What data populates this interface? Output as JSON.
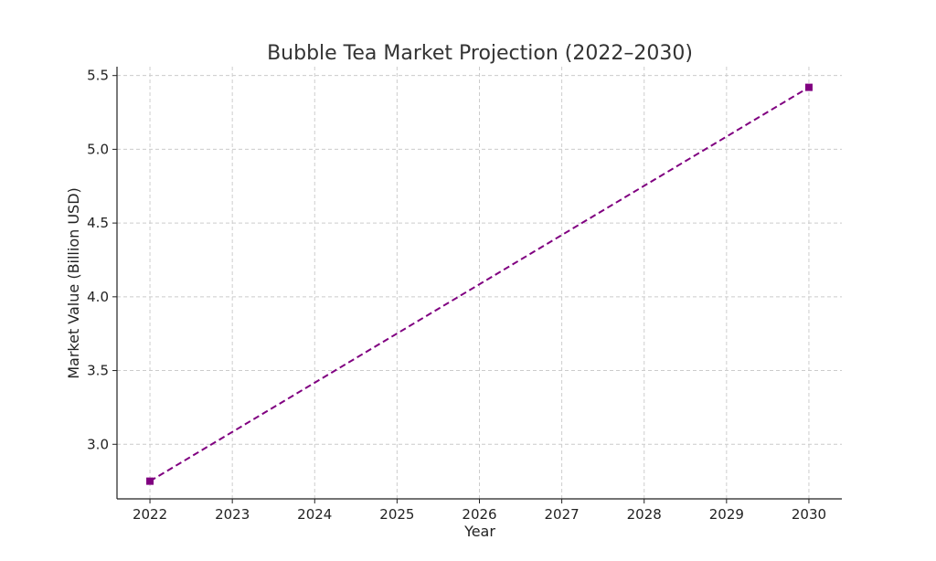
{
  "chart_data": {
    "type": "line",
    "title": "Bubble Tea Market Projection (2022–2030)",
    "xlabel": "Year",
    "ylabel": "Market Value (Billion USD)",
    "x_ticks": [
      "2022",
      "2023",
      "2024",
      "2025",
      "2026",
      "2027",
      "2028",
      "2029",
      "2030"
    ],
    "y_ticks": [
      "3.0",
      "3.5",
      "4.0",
      "4.5",
      "5.0",
      "5.5"
    ],
    "xlim": [
      2021.6,
      2030.4
    ],
    "ylim": [
      2.63,
      5.56
    ],
    "grid": true,
    "series": [
      {
        "x": [
          2022,
          2030
        ],
        "y": [
          2.75,
          5.42
        ],
        "color": "#800080",
        "line_style": "dashed",
        "marker": "square"
      }
    ]
  }
}
